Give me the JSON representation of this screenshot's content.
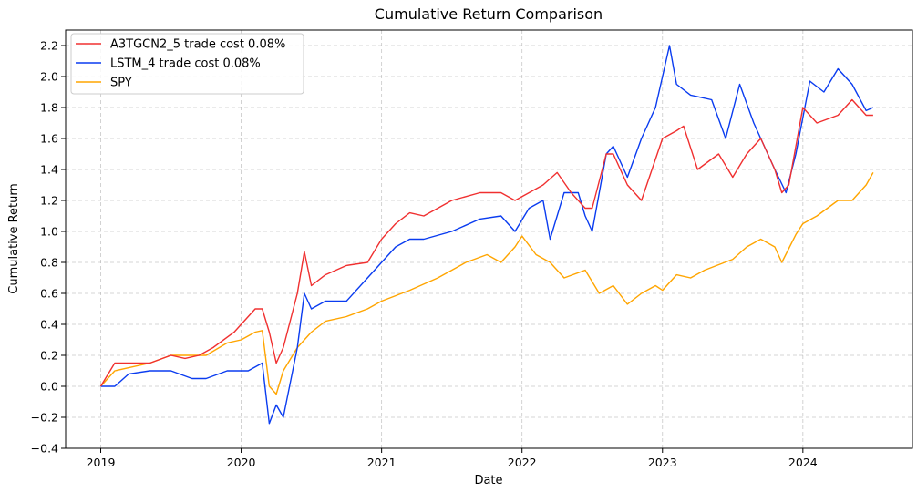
{
  "chart_data": {
    "type": "line",
    "title": "Cumulative Return Comparison",
    "xlabel": "Date",
    "ylabel": "Cumulative Return",
    "xlim": [
      2018.75,
      2024.78
    ],
    "ylim": [
      -0.4,
      2.3
    ],
    "x_ticks": [
      2019,
      2020,
      2021,
      2022,
      2023,
      2024
    ],
    "x_tick_labels": [
      "2019",
      "2020",
      "2021",
      "2022",
      "2023",
      "2024"
    ],
    "y_ticks": [
      -0.4,
      -0.2,
      0.0,
      0.2,
      0.4,
      0.6,
      0.8,
      1.0,
      1.2,
      1.4,
      1.6,
      1.8,
      2.0,
      2.2
    ],
    "y_tick_labels": [
      "−0.4",
      "−0.2",
      "0.0",
      "0.2",
      "0.4",
      "0.6",
      "0.8",
      "1.0",
      "1.2",
      "1.4",
      "1.6",
      "1.8",
      "2.0",
      "2.2"
    ],
    "grid": true,
    "legend_position": "top-left",
    "series": [
      {
        "name": "A3TGCN2_5 trade cost 0.08%",
        "color": "#f03030",
        "x": [
          2019.0,
          2019.1,
          2019.2,
          2019.35,
          2019.5,
          2019.6,
          2019.7,
          2019.8,
          2019.95,
          2020.1,
          2020.15,
          2020.2,
          2020.25,
          2020.3,
          2020.4,
          2020.45,
          2020.5,
          2020.6,
          2020.75,
          2020.9,
          2021.0,
          2021.1,
          2021.2,
          2021.3,
          2021.5,
          2021.7,
          2021.85,
          2021.95,
          2022.05,
          2022.15,
          2022.25,
          2022.35,
          2022.45,
          2022.5,
          2022.6,
          2022.65,
          2022.75,
          2022.85,
          2023.0,
          2023.1,
          2023.15,
          2023.25,
          2023.4,
          2023.5,
          2023.6,
          2023.7,
          2023.8,
          2023.85,
          2023.9,
          2024.0,
          2024.1,
          2024.25,
          2024.35,
          2024.45,
          2024.5
        ],
        "y": [
          0.0,
          0.15,
          0.15,
          0.15,
          0.2,
          0.18,
          0.2,
          0.25,
          0.35,
          0.5,
          0.5,
          0.35,
          0.15,
          0.25,
          0.6,
          0.87,
          0.65,
          0.72,
          0.78,
          0.8,
          0.95,
          1.05,
          1.12,
          1.1,
          1.2,
          1.25,
          1.25,
          1.2,
          1.25,
          1.3,
          1.38,
          1.25,
          1.15,
          1.15,
          1.5,
          1.5,
          1.3,
          1.2,
          1.6,
          1.65,
          1.68,
          1.4,
          1.5,
          1.35,
          1.5,
          1.6,
          1.4,
          1.25,
          1.3,
          1.8,
          1.7,
          1.75,
          1.85,
          1.75,
          1.75
        ]
      },
      {
        "name": "LSTM_4 trade cost 0.08%",
        "color": "#0a3cf0",
        "x": [
          2019.0,
          2019.1,
          2019.2,
          2019.35,
          2019.5,
          2019.65,
          2019.75,
          2019.9,
          2020.05,
          2020.15,
          2020.2,
          2020.25,
          2020.3,
          2020.4,
          2020.45,
          2020.5,
          2020.6,
          2020.75,
          2020.9,
          2021.0,
          2021.1,
          2021.2,
          2021.3,
          2021.5,
          2021.7,
          2021.85,
          2021.95,
          2022.05,
          2022.15,
          2022.2,
          2022.3,
          2022.4,
          2022.45,
          2022.5,
          2022.6,
          2022.65,
          2022.75,
          2022.85,
          2022.95,
          2023.05,
          2023.1,
          2023.2,
          2023.35,
          2023.45,
          2023.55,
          2023.65,
          2023.8,
          2023.88,
          2023.95,
          2024.05,
          2024.15,
          2024.25,
          2024.35,
          2024.45,
          2024.5
        ],
        "y": [
          0.0,
          0.0,
          0.08,
          0.1,
          0.1,
          0.05,
          0.05,
          0.1,
          0.1,
          0.15,
          -0.24,
          -0.12,
          -0.2,
          0.25,
          0.6,
          0.5,
          0.55,
          0.55,
          0.7,
          0.8,
          0.9,
          0.95,
          0.95,
          1.0,
          1.08,
          1.1,
          1.0,
          1.15,
          1.2,
          0.95,
          1.25,
          1.25,
          1.1,
          1.0,
          1.5,
          1.55,
          1.35,
          1.6,
          1.8,
          2.2,
          1.95,
          1.88,
          1.85,
          1.6,
          1.95,
          1.7,
          1.4,
          1.25,
          1.5,
          1.97,
          1.9,
          2.05,
          1.95,
          1.78,
          1.8
        ]
      },
      {
        "name": "SPY",
        "color": "#ffa500",
        "x": [
          2019.0,
          2019.1,
          2019.2,
          2019.35,
          2019.5,
          2019.6,
          2019.75,
          2019.9,
          2020.0,
          2020.1,
          2020.15,
          2020.2,
          2020.25,
          2020.3,
          2020.4,
          2020.5,
          2020.6,
          2020.75,
          2020.9,
          2021.0,
          2021.2,
          2021.4,
          2021.6,
          2021.75,
          2021.85,
          2021.95,
          2022.0,
          2022.1,
          2022.2,
          2022.3,
          2022.45,
          2022.55,
          2022.65,
          2022.75,
          2022.85,
          2022.95,
          2023.0,
          2023.1,
          2023.2,
          2023.3,
          2023.5,
          2023.6,
          2023.7,
          2023.8,
          2023.85,
          2023.95,
          2024.0,
          2024.1,
          2024.25,
          2024.35,
          2024.45,
          2024.5
        ],
        "y": [
          0.0,
          0.1,
          0.12,
          0.15,
          0.2,
          0.2,
          0.2,
          0.28,
          0.3,
          0.35,
          0.36,
          0.0,
          -0.05,
          0.1,
          0.25,
          0.35,
          0.42,
          0.45,
          0.5,
          0.55,
          0.62,
          0.7,
          0.8,
          0.85,
          0.8,
          0.9,
          0.97,
          0.85,
          0.8,
          0.7,
          0.75,
          0.6,
          0.65,
          0.53,
          0.6,
          0.65,
          0.62,
          0.72,
          0.7,
          0.75,
          0.82,
          0.9,
          0.95,
          0.9,
          0.8,
          0.98,
          1.05,
          1.1,
          1.2,
          1.2,
          1.3,
          1.38
        ]
      }
    ]
  }
}
